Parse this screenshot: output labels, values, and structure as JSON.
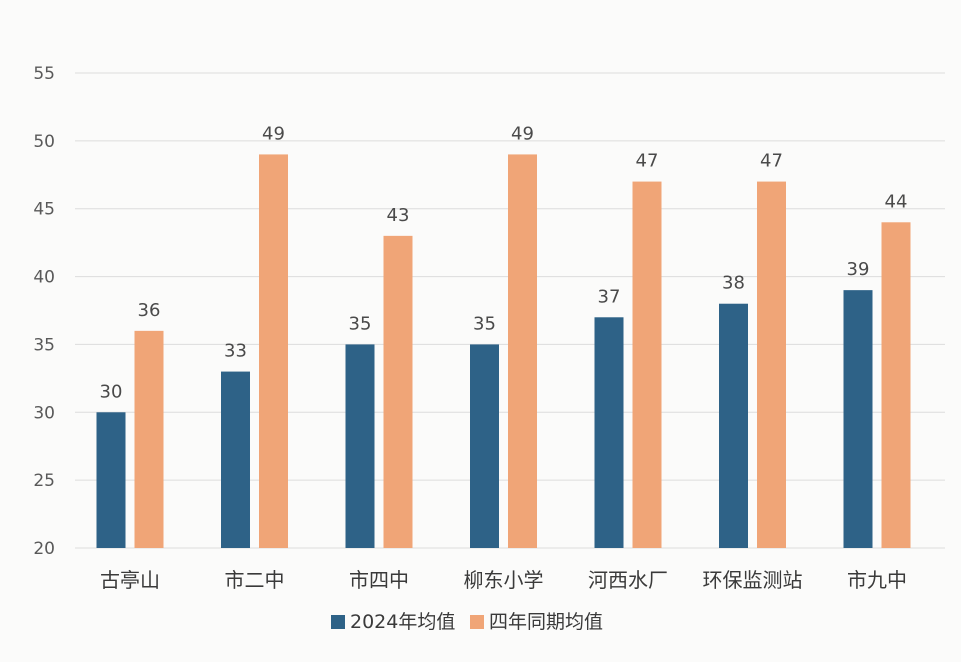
{
  "chart_data": {
    "type": "bar",
    "categories": [
      "古亭山",
      "市二中",
      "市四中",
      "柳东小学",
      "河西水厂",
      "环保监测站",
      "市九中"
    ],
    "series": [
      {
        "name": "2024年均值",
        "values": [
          30,
          33,
          35,
          35,
          37,
          38,
          39
        ],
        "labels": [
          "30",
          "33",
          "35",
          "35",
          "37",
          "38",
          "39"
        ],
        "color": "#2e6287"
      },
      {
        "name": "四年同期均值",
        "values": [
          36,
          49,
          43,
          49,
          47,
          47,
          44
        ],
        "labels": [
          "36",
          "49",
          "43",
          "49",
          "47",
          "47",
          "44"
        ],
        "color": "#f0a577"
      }
    ],
    "ylim": [
      20,
      55
    ],
    "yticks": [
      "20",
      "25",
      "30",
      "35",
      "40",
      "45",
      "50",
      "55"
    ],
    "grid": true,
    "legend_position": "bottom",
    "title": "",
    "xlabel": "",
    "ylabel": ""
  }
}
